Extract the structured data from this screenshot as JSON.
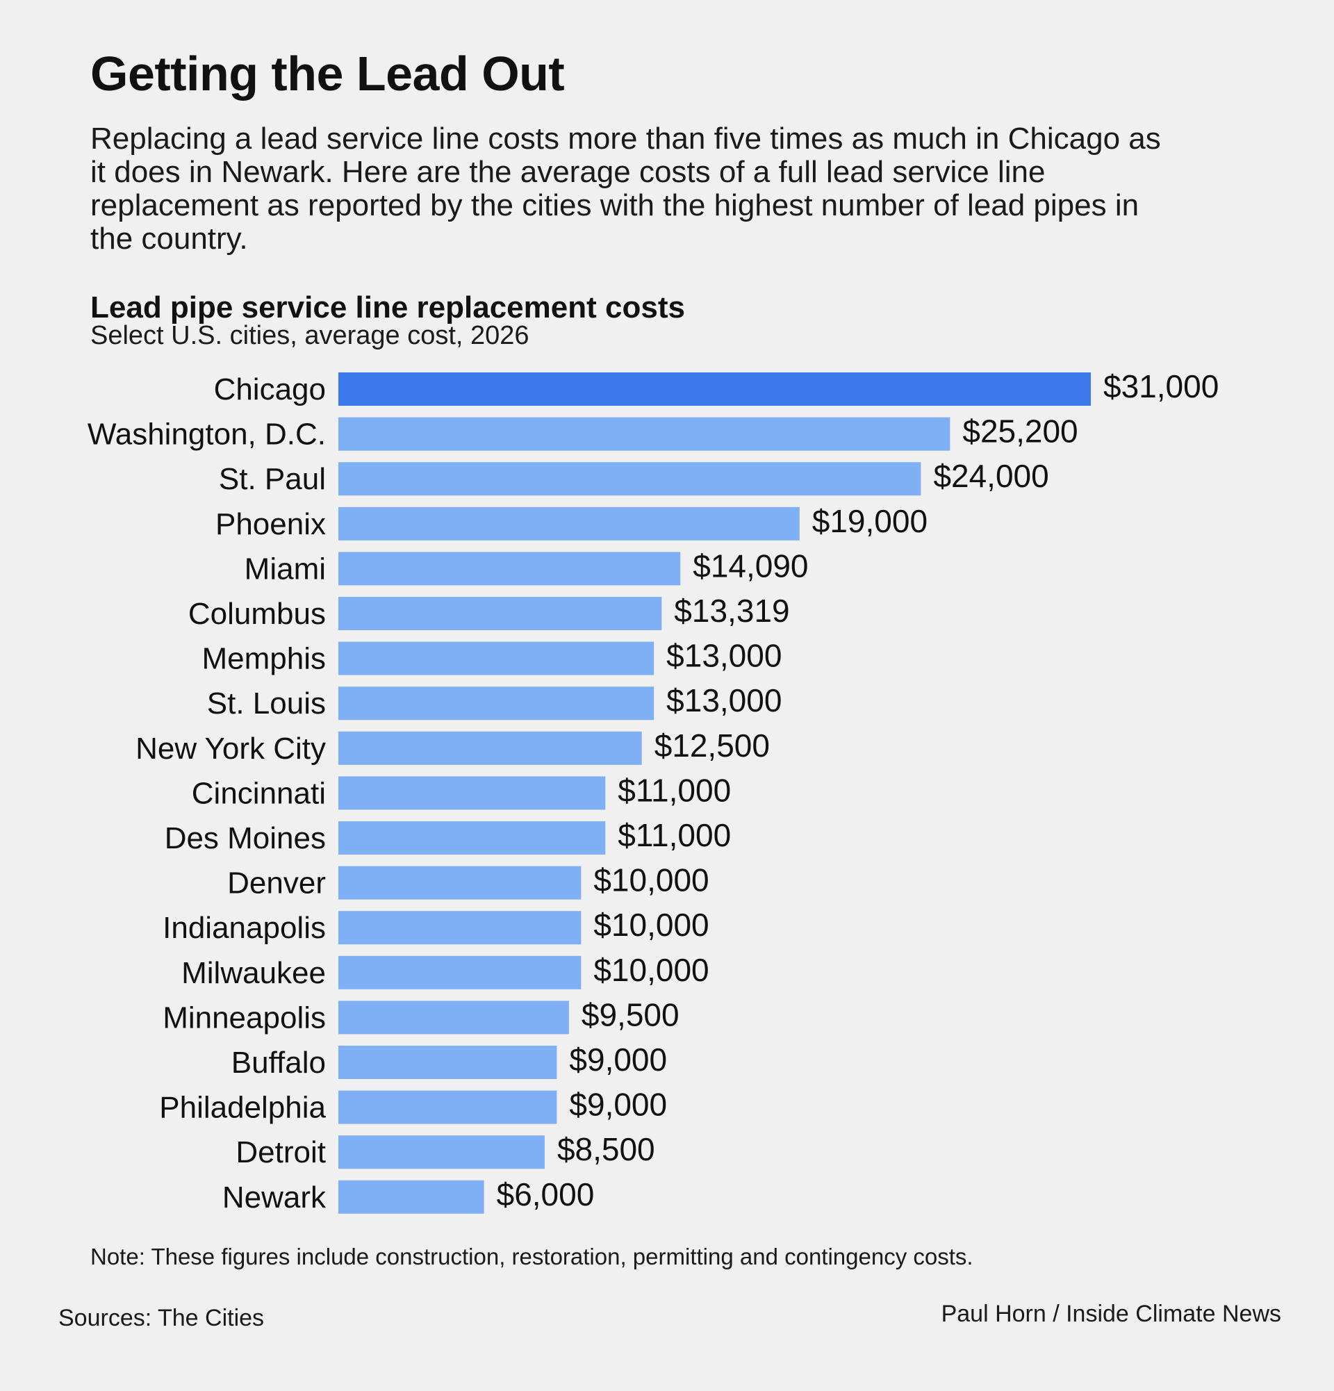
{
  "header": {
    "title": "Getting the Lead Out",
    "dek": "Replacing a lead service line costs more than five times as much in Chicago as it does in Newark. Here are the average costs of a full lead service line replacement as reported by the cities with the highest number of lead pipes in the country."
  },
  "chart_data": {
    "type": "bar",
    "orientation": "horizontal",
    "title": "Lead pipe service line replacement costs",
    "subtitle": "Select U.S. cities, average cost, 2026",
    "categories": [
      "Chicago",
      "Washington, D.C.",
      "St. Paul",
      "Phoenix",
      "Miami",
      "Columbus",
      "Memphis",
      "St. Louis",
      "New York City",
      "Cincinnati",
      "Des Moines",
      "Denver",
      "Indianapolis",
      "Milwaukee",
      "Minneapolis",
      "Buffalo",
      "Philadelphia",
      "Detroit",
      "Newark"
    ],
    "values": [
      31000,
      25200,
      24000,
      19000,
      14090,
      13319,
      13000,
      13000,
      12500,
      11000,
      11000,
      10000,
      10000,
      10000,
      9500,
      9000,
      9000,
      8500,
      6000
    ],
    "value_labels": [
      "$31,000",
      "$25,200",
      "$24,000",
      "$19,000",
      "$14,090",
      "$13,319",
      "$13,000",
      "$13,000",
      "$12,500",
      "$11,000",
      "$11,000",
      "$10,000",
      "$10,000",
      "$10,000",
      "$9,500",
      "$9,000",
      "$9,000",
      "$8,500",
      "$6,000"
    ],
    "highlight_index": 0,
    "colors": {
      "highlight": "#3b78ea",
      "default": "#7fb0f5",
      "text": "#111111"
    },
    "xlim": [
      0,
      31000
    ],
    "grid": false,
    "legend": "none"
  },
  "footer": {
    "note": "Note: These figures include construction, restoration, permitting and contingency costs.",
    "source": "Sources: The Cities",
    "credit": "Paul Horn / Inside Climate News"
  }
}
